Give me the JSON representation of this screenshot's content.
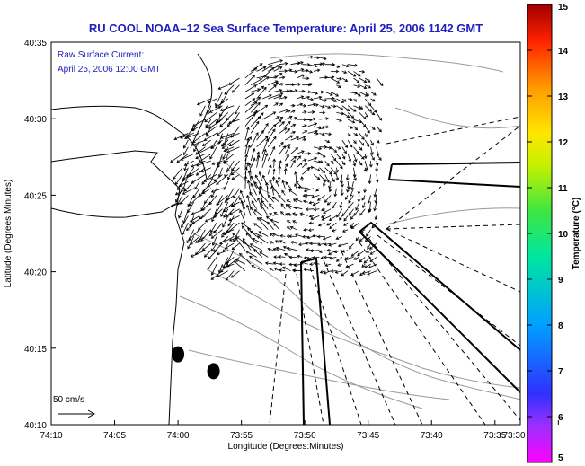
{
  "chart_data": {
    "type": "scatter",
    "title": "RU COOL  NOAA–12  Sea Surface Temperature:  April 25, 2006 1142 GMT",
    "xlabel": "Longitude (Degrees:Minutes)",
    "ylabel": "Latitude (Degrees:Minutes)",
    "xlim_minutes_west": [
      70,
      33
    ],
    "ylim_minutes_north": [
      10,
      35
    ],
    "xticks": [
      {
        "v": 70,
        "label": "74:10"
      },
      {
        "v": 65,
        "label": "74:05"
      },
      {
        "v": 60,
        "label": "74:00"
      },
      {
        "v": 55,
        "label": "73:55"
      },
      {
        "v": 50,
        "label": "73:50"
      },
      {
        "v": 45,
        "label": "73:45"
      },
      {
        "v": 40,
        "label": "73:40"
      },
      {
        "v": 35,
        "label": "73:35"
      },
      {
        "v": 30,
        "label": "73:30"
      }
    ],
    "yticks": [
      {
        "v": 35,
        "label": "40:35"
      },
      {
        "v": 30,
        "label": "40:30"
      },
      {
        "v": 25,
        "label": "40:25"
      },
      {
        "v": 20,
        "label": "40:20"
      },
      {
        "v": 15,
        "label": "40:15"
      },
      {
        "v": 10,
        "label": "40:10"
      }
    ],
    "annotation_line1": "Raw Surface Current:",
    "annotation_line2": "April 25, 2006 12:00 GMT",
    "scale_label": "50 cm/s",
    "colorbar": {
      "label": "Temperature (°C)",
      "min": 5,
      "max": 15,
      "ticks": [
        5,
        6,
        7,
        8,
        9,
        10,
        11,
        12,
        13,
        14,
        15
      ]
    },
    "markers": [
      {
        "x": 60.0,
        "y": 14.6
      },
      {
        "x": 57.2,
        "y": 13.5
      }
    ],
    "vector_field_region": {
      "x": [
        44,
        61
      ],
      "y": [
        20,
        34
      ]
    },
    "colors": {
      "title": "#1f1fbf",
      "annotation": "#1f1fbf"
    }
  }
}
